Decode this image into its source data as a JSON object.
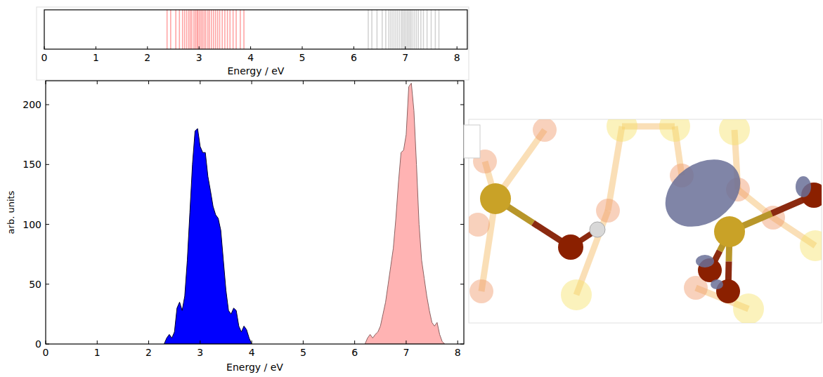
{
  "chart_data": [
    {
      "type": "rug",
      "xlabel": "Energy / eV",
      "xlim": [
        0,
        8.2
      ],
      "xticks": [
        0,
        1,
        2,
        3,
        4,
        5,
        6,
        7,
        8
      ],
      "tick_labels": "x",
      "series": [
        {
          "color": "#ff0000",
          "x": [
            2.38,
            2.45,
            2.55,
            2.62,
            2.68,
            2.72,
            2.76,
            2.8,
            2.83,
            2.86,
            2.9,
            2.93,
            2.96,
            2.98,
            3.01,
            3.04,
            3.07,
            3.1,
            3.13,
            3.17,
            3.2,
            3.24,
            3.28,
            3.32,
            3.36,
            3.4,
            3.45,
            3.5,
            3.55,
            3.6,
            3.66,
            3.72,
            3.8,
            3.87
          ]
        },
        {
          "color": "#808080",
          "x": [
            6.28,
            6.35,
            6.45,
            6.55,
            6.62,
            6.68,
            6.72,
            6.76,
            6.8,
            6.84,
            6.88,
            6.92,
            6.95,
            6.98,
            7.01,
            7.04,
            7.07,
            7.1,
            7.13,
            7.17,
            7.21,
            7.25,
            7.3,
            7.35,
            7.42,
            7.5,
            7.58,
            7.65
          ]
        }
      ]
    },
    {
      "type": "area",
      "xlabel": "Energy / eV",
      "ylabel": "arb. units",
      "xlim": [
        0,
        8.12
      ],
      "ylim": [
        0,
        220
      ],
      "xticks": [
        0,
        1,
        2,
        3,
        4,
        5,
        6,
        7,
        8
      ],
      "yticks": [
        0,
        50,
        100,
        150,
        200
      ],
      "series": [
        {
          "color": "#0000ff",
          "x": [
            2.3,
            2.35,
            2.4,
            2.45,
            2.5,
            2.55,
            2.6,
            2.65,
            2.7,
            2.75,
            2.8,
            2.85,
            2.9,
            2.95,
            3.0,
            3.05,
            3.1,
            3.15,
            3.2,
            3.25,
            3.3,
            3.35,
            3.4,
            3.45,
            3.5,
            3.55,
            3.6,
            3.65,
            3.7,
            3.75,
            3.8,
            3.85,
            3.9,
            3.95,
            4.0
          ],
          "values": [
            0,
            5,
            8,
            5,
            10,
            30,
            35,
            28,
            40,
            70,
            110,
            150,
            178,
            180,
            165,
            160,
            160,
            140,
            128,
            115,
            108,
            105,
            95,
            70,
            45,
            28,
            25,
            30,
            28,
            15,
            10,
            15,
            12,
            5,
            0
          ]
        },
        {
          "color": "#ffb3b3",
          "x": [
            6.2,
            6.25,
            6.3,
            6.35,
            6.4,
            6.45,
            6.5,
            6.55,
            6.6,
            6.65,
            6.7,
            6.75,
            6.8,
            6.85,
            6.9,
            6.95,
            7.0,
            7.05,
            7.1,
            7.15,
            7.2,
            7.25,
            7.3,
            7.35,
            7.4,
            7.45,
            7.5,
            7.55,
            7.6,
            7.65,
            7.7,
            7.75
          ],
          "values": [
            0,
            5,
            8,
            5,
            8,
            10,
            15,
            25,
            35,
            50,
            65,
            80,
            105,
            135,
            160,
            162,
            175,
            215,
            218,
            195,
            150,
            100,
            70,
            55,
            40,
            28,
            18,
            15,
            18,
            8,
            2,
            0
          ]
        }
      ]
    }
  ]
}
